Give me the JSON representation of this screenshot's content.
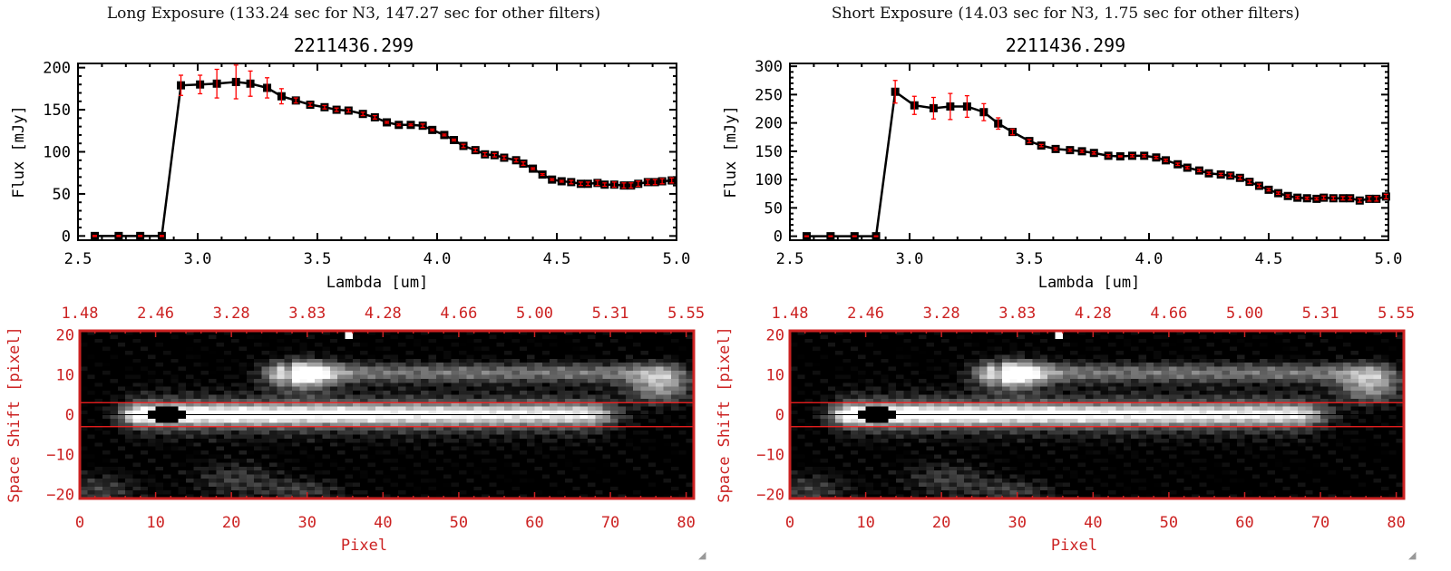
{
  "panels": [
    {
      "title": "Long Exposure (133.24 sec for N3, 147.27 sec for other filters)",
      "object": "2211436.299"
    },
    {
      "title": "Short Exposure (14.03 sec for N3, 1.75 sec for other filters)",
      "object": "2211436.299"
    }
  ],
  "colors": {
    "axis": "#000000",
    "error": "#ff0000",
    "image_axis": "#cc2222",
    "aperture_line": "#ff2020"
  },
  "chart_data": [
    {
      "type": "line",
      "title": "2211436.299",
      "xlabel": "Lambda [um]",
      "ylabel": "Flux [mJy]",
      "xlim": [
        2.5,
        5.0
      ],
      "ylim": [
        -5,
        205
      ],
      "xticks": [
        "2.5",
        "3.0",
        "3.5",
        "4.0",
        "4.5",
        "5.0"
      ],
      "xtick_values": [
        2.5,
        3.0,
        3.5,
        4.0,
        4.5,
        5.0
      ],
      "yticks": [
        "0",
        "50",
        "100",
        "150",
        "200"
      ],
      "ytick_values": [
        0,
        50,
        100,
        150,
        200
      ],
      "x": [
        2.57,
        2.67,
        2.76,
        2.85,
        2.93,
        3.01,
        3.08,
        3.16,
        3.22,
        3.29,
        3.35,
        3.41,
        3.47,
        3.53,
        3.58,
        3.63,
        3.69,
        3.74,
        3.79,
        3.84,
        3.89,
        3.94,
        3.98,
        4.03,
        4.07,
        4.11,
        4.16,
        4.2,
        4.24,
        4.28,
        4.33,
        4.36,
        4.4,
        4.44,
        4.48,
        4.52,
        4.56,
        4.6,
        4.63,
        4.67,
        4.7,
        4.74,
        4.78,
        4.81,
        4.84,
        4.88,
        4.91,
        4.94,
        4.98
      ],
      "y": [
        0,
        0,
        0,
        0,
        179,
        180,
        181,
        183,
        181,
        176,
        166,
        161,
        156,
        153,
        150,
        149,
        145,
        141,
        135,
        132,
        132,
        131,
        126,
        120,
        114,
        107,
        102,
        97,
        96,
        93,
        90,
        86,
        80,
        73,
        67,
        65,
        64,
        62,
        62,
        63,
        61,
        61,
        60,
        60,
        62,
        64,
        64,
        65,
        66
      ],
      "err": [
        0,
        0,
        0,
        0,
        12,
        11,
        17,
        20,
        15,
        12,
        9,
        3,
        2,
        2,
        2,
        2,
        2,
        2,
        1,
        1,
        1,
        2,
        1,
        1,
        1,
        2,
        2,
        2,
        2,
        2,
        2,
        2,
        1,
        1,
        1,
        1,
        2,
        2,
        2,
        3,
        2,
        3,
        3,
        3,
        3,
        3,
        3,
        3,
        3
      ]
    },
    {
      "type": "line",
      "title": "2211436.299",
      "xlabel": "Lambda [um]",
      "ylabel": "Flux [mJy]",
      "xlim": [
        2.5,
        5.0
      ],
      "ylim": [
        -7,
        305
      ],
      "xticks": [
        "2.5",
        "3.0",
        "3.5",
        "4.0",
        "4.5",
        "5.0"
      ],
      "xtick_values": [
        2.5,
        3.0,
        3.5,
        4.0,
        4.5,
        5.0
      ],
      "yticks": [
        "0",
        "50",
        "100",
        "150",
        "200",
        "250",
        "300"
      ],
      "ytick_values": [
        0,
        50,
        100,
        150,
        200,
        250,
        300
      ],
      "x": [
        2.57,
        2.67,
        2.77,
        2.86,
        2.94,
        3.02,
        3.1,
        3.17,
        3.24,
        3.31,
        3.37,
        3.43,
        3.5,
        3.55,
        3.61,
        3.67,
        3.72,
        3.77,
        3.83,
        3.88,
        3.93,
        3.98,
        4.03,
        4.07,
        4.12,
        4.16,
        4.21,
        4.25,
        4.3,
        4.34,
        4.38,
        4.42,
        4.46,
        4.5,
        4.54,
        4.58,
        4.62,
        4.66,
        4.7,
        4.73,
        4.77,
        4.81,
        4.84,
        4.88,
        4.92,
        4.95,
        4.99
      ],
      "y": [
        0,
        0,
        0,
        0,
        255,
        231,
        226,
        229,
        229,
        219,
        199,
        184,
        168,
        160,
        154,
        152,
        150,
        147,
        142,
        141,
        142,
        142,
        139,
        134,
        127,
        121,
        116,
        111,
        109,
        107,
        103,
        96,
        89,
        82,
        76,
        71,
        68,
        67,
        66,
        68,
        67,
        67,
        67,
        63,
        66,
        66,
        70
      ],
      "err": [
        0,
        0,
        0,
        0,
        20,
        16,
        19,
        23,
        19,
        15,
        10,
        5,
        3,
        2,
        2,
        2,
        2,
        2,
        2,
        1,
        2,
        2,
        2,
        2,
        2,
        2,
        2,
        2,
        2,
        3,
        3,
        3,
        3,
        2,
        2,
        2,
        2,
        2,
        2,
        3,
        3,
        3,
        3,
        3,
        4,
        4,
        4
      ]
    }
  ],
  "images": [
    {
      "xlabel": "Pixel",
      "ylabel": "Space Shift [pixel]",
      "xticks": [
        "0",
        "10",
        "20",
        "30",
        "40",
        "50",
        "60",
        "70",
        "80"
      ],
      "xtick_values": [
        0,
        10,
        20,
        30,
        40,
        50,
        60,
        70,
        80
      ],
      "yticks": [
        "20",
        "10",
        "0",
        "−10",
        "−20"
      ],
      "ytick_values": [
        20,
        10,
        0,
        -10,
        -20
      ],
      "top_ticks": [
        "1.48",
        "2.46",
        "3.28",
        "3.83",
        "4.28",
        "4.66",
        "5.00",
        "5.31",
        "5.55"
      ],
      "xlim": [
        0,
        81
      ],
      "ylim": [
        -21,
        21
      ],
      "aperture": [
        -3,
        3
      ]
    },
    {
      "xlabel": "Pixel",
      "ylabel": "Space Shift [pixel]",
      "xticks": [
        "0",
        "10",
        "20",
        "30",
        "40",
        "50",
        "60",
        "70",
        "80"
      ],
      "xtick_values": [
        0,
        10,
        20,
        30,
        40,
        50,
        60,
        70,
        80
      ],
      "yticks": [
        "20",
        "10",
        "0",
        "−10",
        "−20"
      ],
      "ytick_values": [
        20,
        10,
        0,
        -10,
        -20
      ],
      "top_ticks": [
        "1.48",
        "2.46",
        "3.28",
        "3.83",
        "4.28",
        "4.66",
        "5.00",
        "5.31",
        "5.55"
      ],
      "xlim": [
        0,
        81
      ],
      "ylim": [
        -21,
        21
      ],
      "aperture": [
        -3,
        3
      ]
    }
  ]
}
